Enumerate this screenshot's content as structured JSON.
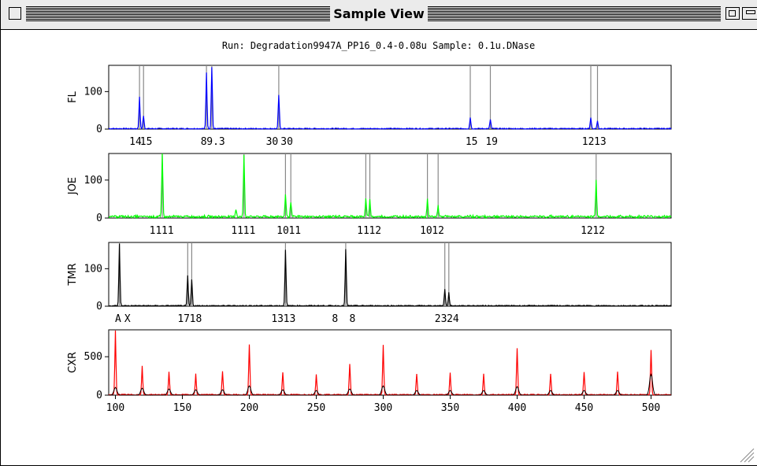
{
  "window": {
    "title": "Sample View"
  },
  "run_label": "Run: Degradation9947A_PP16_0.4-0.08u  Sample: 0.1u.DNase",
  "chart_data": [
    {
      "type": "line",
      "panel_label": "FL",
      "color": "#0000ff",
      "x_range": [
        95,
        515
      ],
      "ylim": [
        0,
        170
      ],
      "yticks": [
        0,
        100
      ],
      "markers": [
        118,
        121,
        168,
        172,
        222,
        365,
        380,
        455,
        460
      ],
      "allele_labels": [
        {
          "text": "14",
          "x": 115
        },
        {
          "text": "15",
          "x": 123
        },
        {
          "text": "8",
          "x": 166
        },
        {
          "text": "9.3",
          "x": 175
        },
        {
          "text": "30",
          "x": 217
        },
        {
          "text": "30",
          "x": 228
        },
        {
          "text": "15",
          "x": 366
        },
        {
          "text": "19",
          "x": 381
        },
        {
          "text": "12",
          "x": 453
        },
        {
          "text": "13",
          "x": 462
        }
      ],
      "peaks": [
        [
          118,
          85
        ],
        [
          121,
          35
        ],
        [
          168,
          150
        ],
        [
          172,
          165
        ],
        [
          222,
          90
        ],
        [
          365,
          30
        ],
        [
          380,
          25
        ],
        [
          455,
          30
        ],
        [
          460,
          20
        ]
      ]
    },
    {
      "type": "line",
      "panel_label": "JOE",
      "color": "#00ff00",
      "x_range": [
        95,
        515
      ],
      "ylim": [
        0,
        170
      ],
      "yticks": [
        0,
        100
      ],
      "markers": [
        135,
        196,
        227,
        231,
        287,
        290,
        333,
        341,
        459
      ],
      "allele_labels": [
        {
          "text": "11",
          "x": 130
        },
        {
          "text": "11",
          "x": 139
        },
        {
          "text": "11",
          "x": 191
        },
        {
          "text": "11",
          "x": 200
        },
        {
          "text": "10",
          "x": 225
        },
        {
          "text": "11",
          "x": 234
        },
        {
          "text": "11",
          "x": 285
        },
        {
          "text": "12",
          "x": 294
        },
        {
          "text": "10",
          "x": 332
        },
        {
          "text": "12",
          "x": 341
        },
        {
          "text": "12",
          "x": 452
        },
        {
          "text": "12",
          "x": 461
        }
      ],
      "peaks": [
        [
          135,
          170
        ],
        [
          196,
          165
        ],
        [
          227,
          60
        ],
        [
          231,
          40
        ],
        [
          287,
          45
        ],
        [
          290,
          45
        ],
        [
          333,
          45
        ],
        [
          341,
          30
        ],
        [
          459,
          95
        ],
        [
          190,
          20
        ]
      ]
    },
    {
      "type": "line",
      "panel_label": "TMR",
      "color": "#000000",
      "x_range": [
        95,
        515
      ],
      "ylim": [
        0,
        170
      ],
      "yticks": [
        0,
        100
      ],
      "markers": [
        103,
        154,
        157,
        227,
        272,
        346,
        349
      ],
      "allele_labels": [
        {
          "text": "A",
          "x": 102
        },
        {
          "text": "X",
          "x": 109
        },
        {
          "text": "17",
          "x": 151
        },
        {
          "text": "18",
          "x": 160
        },
        {
          "text": "13",
          "x": 221
        },
        {
          "text": "13",
          "x": 230
        },
        {
          "text": "8",
          "x": 264
        },
        {
          "text": "8",
          "x": 277
        },
        {
          "text": "23",
          "x": 343
        },
        {
          "text": "24",
          "x": 352
        }
      ],
      "peaks": [
        [
          103,
          165
        ],
        [
          154,
          80
        ],
        [
          157,
          70
        ],
        [
          227,
          150
        ],
        [
          272,
          150
        ],
        [
          346,
          45
        ],
        [
          349,
          35
        ]
      ]
    },
    {
      "type": "line",
      "panel_label": "CXR",
      "color": "#ff0000",
      "x_range": [
        95,
        515
      ],
      "ylim": [
        0,
        850
      ],
      "yticks": [
        0,
        500
      ],
      "xticks": [
        100,
        150,
        200,
        250,
        300,
        350,
        400,
        450,
        500
      ],
      "peaks": [
        [
          100,
          830
        ],
        [
          120,
          370
        ],
        [
          140,
          300
        ],
        [
          160,
          270
        ],
        [
          180,
          300
        ],
        [
          200,
          650
        ],
        [
          225,
          290
        ],
        [
          250,
          270
        ],
        [
          275,
          400
        ],
        [
          300,
          650
        ],
        [
          325,
          270
        ],
        [
          350,
          280
        ],
        [
          375,
          270
        ],
        [
          400,
          600
        ],
        [
          425,
          270
        ],
        [
          450,
          290
        ],
        [
          475,
          300
        ],
        [
          500,
          580
        ]
      ],
      "black_peaks": [
        [
          100,
          100
        ],
        [
          120,
          90
        ],
        [
          140,
          80
        ],
        [
          160,
          70
        ],
        [
          180,
          70
        ],
        [
          200,
          120
        ],
        [
          225,
          70
        ],
        [
          250,
          60
        ],
        [
          275,
          80
        ],
        [
          300,
          120
        ],
        [
          325,
          60
        ],
        [
          350,
          60
        ],
        [
          375,
          60
        ],
        [
          400,
          110
        ],
        [
          425,
          60
        ],
        [
          450,
          60
        ],
        [
          475,
          60
        ],
        [
          500,
          270
        ]
      ]
    }
  ]
}
